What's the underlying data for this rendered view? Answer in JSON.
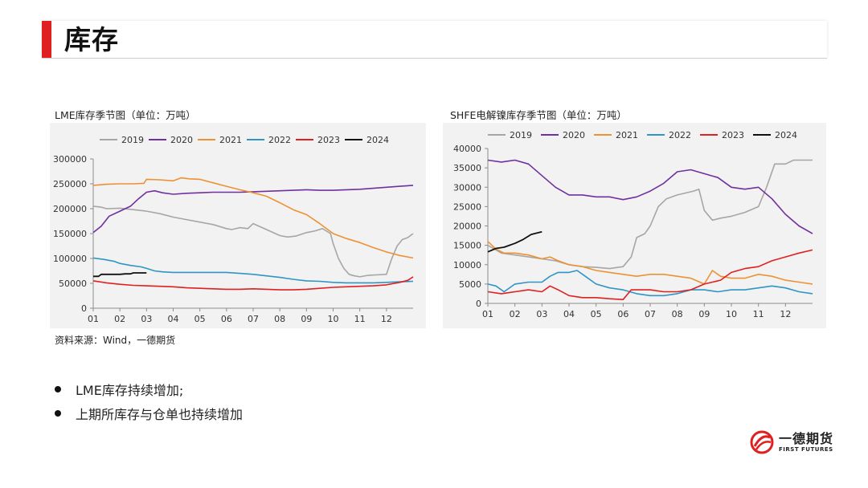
{
  "header": {
    "title": "库存"
  },
  "charts": {
    "lme": {
      "title": "LME库存季节图（单位：万吨）"
    },
    "shfe": {
      "title": "SHFE电解镍库存季节图（单位：万吨）"
    }
  },
  "source_note": "资料来源：Wind，一德期货",
  "bullets": [
    "LME库存持续增加;",
    "上期所库存与仓单也持续增加"
  ],
  "logo": {
    "cn": "一德期货",
    "en": "FIRST FUTURES"
  },
  "colors": {
    "2019": "#a6a6a6",
    "2020": "#7030a0",
    "2021": "#ed9234",
    "2022": "#2f95c5",
    "2023": "#e02020",
    "2024": "#111111",
    "accent": "#e02020"
  },
  "chart_data": [
    {
      "type": "line",
      "title": "LME库存季节图（单位：万吨）",
      "xlabel": "",
      "ylabel": "",
      "x_ticks": [
        "01",
        "02",
        "03",
        "04",
        "05",
        "06",
        "07",
        "08",
        "09",
        "10",
        "11",
        "12"
      ],
      "y_ticks": [
        "0",
        "50000",
        "100000",
        "150000",
        "200000",
        "250000",
        "300000"
      ],
      "ylim": [
        0,
        300000
      ],
      "xlim": [
        1,
        13
      ],
      "legend": "top",
      "grid": false,
      "series": [
        {
          "name": "2019",
          "color": "#a6a6a6",
          "x": [
            1,
            1.3,
            1.5,
            2,
            2.5,
            3,
            3.5,
            4,
            4.5,
            5,
            5.5,
            6,
            6.2,
            6.5,
            6.8,
            7,
            7.5,
            8,
            8.3,
            8.6,
            9,
            9.3,
            9.6,
            9.9,
            10,
            10.2,
            10.4,
            10.6,
            10.8,
            11,
            11.3,
            11.6,
            12,
            12.2,
            12.4,
            12.6,
            12.8,
            13
          ],
          "y": [
            205000,
            203000,
            200000,
            201000,
            198000,
            195000,
            190000,
            183000,
            178000,
            173000,
            168000,
            160000,
            158000,
            162000,
            160000,
            170000,
            158000,
            146000,
            143000,
            145000,
            152000,
            155000,
            160000,
            150000,
            130000,
            100000,
            80000,
            68000,
            65000,
            63000,
            66000,
            67000,
            68000,
            100000,
            125000,
            138000,
            142000,
            150000
          ]
        },
        {
          "name": "2020",
          "color": "#7030a0",
          "x": [
            1,
            1.3,
            1.6,
            2,
            2.4,
            2.7,
            3,
            3.3,
            3.6,
            4,
            4.5,
            5,
            5.5,
            6,
            6.5,
            7,
            7.5,
            8,
            8.5,
            9,
            9.5,
            10,
            10.5,
            11,
            11.5,
            12,
            12.5,
            13
          ],
          "y": [
            152000,
            165000,
            185000,
            195000,
            205000,
            220000,
            233000,
            236000,
            232000,
            229000,
            231000,
            232000,
            233000,
            233000,
            233000,
            234000,
            235000,
            236000,
            237000,
            238000,
            237000,
            237000,
            238000,
            239000,
            241000,
            243000,
            245000,
            247000
          ]
        },
        {
          "name": "2021",
          "color": "#ed9234",
          "x": [
            1,
            1.5,
            2,
            2.5,
            2.9,
            3,
            3.5,
            4,
            4.3,
            4.6,
            5,
            5.5,
            6,
            6.5,
            7,
            7.5,
            8,
            8.5,
            9,
            9.5,
            10,
            10.5,
            11,
            11.5,
            12,
            12.5,
            13
          ],
          "y": [
            247000,
            249000,
            250000,
            250000,
            251000,
            259000,
            258000,
            256000,
            262000,
            260000,
            259000,
            252000,
            245000,
            238000,
            232000,
            225000,
            212000,
            198000,
            188000,
            170000,
            150000,
            140000,
            132000,
            122000,
            113000,
            106000,
            101000
          ]
        },
        {
          "name": "2022",
          "color": "#2f95c5",
          "x": [
            1,
            1.4,
            1.8,
            2,
            2.4,
            2.8,
            3,
            3.3,
            3.6,
            4,
            4.5,
            5,
            5.5,
            6,
            6.5,
            7,
            7.5,
            8,
            8.5,
            9,
            9.5,
            10,
            10.5,
            11,
            11.5,
            12,
            12.5,
            13
          ],
          "y": [
            101000,
            98000,
            94000,
            90000,
            86000,
            83000,
            80000,
            75000,
            73000,
            72000,
            72000,
            72000,
            72000,
            72000,
            70000,
            68000,
            65000,
            62000,
            58000,
            55000,
            54000,
            52000,
            51000,
            51000,
            51000,
            52000,
            53000,
            54000
          ]
        },
        {
          "name": "2023",
          "color": "#e02020",
          "x": [
            1,
            1.5,
            2,
            2.5,
            3,
            3.5,
            4,
            4.5,
            5,
            5.5,
            6,
            6.5,
            7,
            7.5,
            8,
            8.5,
            9,
            9.5,
            10,
            10.5,
            11,
            11.5,
            12,
            12.5,
            12.8,
            13
          ],
          "y": [
            55000,
            51000,
            48000,
            46000,
            45000,
            44000,
            43000,
            41000,
            40000,
            39000,
            38000,
            38000,
            39000,
            38000,
            37000,
            37000,
            38000,
            40000,
            42000,
            43000,
            44000,
            45000,
            47000,
            52000,
            56000,
            63000
          ]
        },
        {
          "name": "2024",
          "color": "#111111",
          "x": [
            1,
            1.2,
            1.3,
            1.6,
            1.8,
            2,
            2.2,
            2.4,
            2.5,
            2.8,
            3
          ],
          "y": [
            64000,
            64000,
            68000,
            68000,
            68000,
            68000,
            69000,
            69000,
            71000,
            71000,
            71000
          ]
        }
      ]
    },
    {
      "type": "line",
      "title": "SHFE电解镍库存季节图（单位：万吨）",
      "xlabel": "",
      "ylabel": "",
      "x_ticks": [
        "01",
        "02",
        "03",
        "04",
        "05",
        "06",
        "07",
        "08",
        "09",
        "10",
        "11",
        "12"
      ],
      "y_ticks": [
        "0",
        "5000",
        "10000",
        "15000",
        "20000",
        "25000",
        "30000",
        "35000",
        "40000"
      ],
      "ylim": [
        0,
        40000
      ],
      "xlim": [
        1,
        13
      ],
      "legend": "top",
      "grid": false,
      "series": [
        {
          "name": "2019",
          "color": "#a6a6a6",
          "x": [
            1,
            1.5,
            2,
            2.5,
            3,
            3.5,
            4,
            4.5,
            5,
            5.5,
            6,
            6.3,
            6.5,
            6.8,
            7,
            7.3,
            7.6,
            8,
            8.3,
            8.6,
            8.8,
            9,
            9.3,
            9.6,
            10,
            10.5,
            11,
            11.3,
            11.6,
            12,
            12.3,
            12.6,
            13
          ],
          "y": [
            15000,
            13000,
            12500,
            12000,
            11500,
            11000,
            10000,
            9500,
            9300,
            9000,
            9500,
            12000,
            17000,
            18000,
            20000,
            25000,
            27000,
            28000,
            28500,
            29000,
            29500,
            24000,
            21500,
            22000,
            22500,
            23500,
            25000,
            30000,
            36000,
            36000,
            37000,
            37000,
            37000
          ]
        },
        {
          "name": "2020",
          "color": "#7030a0",
          "x": [
            1,
            1.5,
            2,
            2.5,
            3,
            3.5,
            4,
            4.5,
            5,
            5.5,
            6,
            6.5,
            7,
            7.5,
            8,
            8.5,
            9,
            9.5,
            10,
            10.5,
            11,
            11.5,
            12,
            12.5,
            13
          ],
          "y": [
            37000,
            36500,
            37000,
            36000,
            33000,
            30000,
            28000,
            28000,
            27500,
            27500,
            26800,
            27500,
            29000,
            31000,
            34000,
            34500,
            33500,
            32500,
            30000,
            29500,
            30000,
            27000,
            23000,
            20000,
            18000
          ]
        },
        {
          "name": "2021",
          "color": "#ed9234",
          "x": [
            1,
            1.3,
            1.6,
            2,
            2.5,
            3,
            3.3,
            3.6,
            4,
            4.5,
            5,
            5.5,
            6,
            6.5,
            7,
            7.5,
            8,
            8.5,
            9,
            9.3,
            9.6,
            10,
            10.5,
            11,
            11.5,
            12,
            12.5,
            13
          ],
          "y": [
            16000,
            14000,
            13000,
            13000,
            12500,
            11500,
            12000,
            11000,
            10000,
            9500,
            8500,
            8000,
            7500,
            7000,
            7500,
            7500,
            7000,
            6500,
            5000,
            8500,
            7000,
            6500,
            6500,
            7500,
            7000,
            6000,
            5500,
            5000
          ]
        },
        {
          "name": "2022",
          "color": "#2f95c5",
          "x": [
            1,
            1.3,
            1.6,
            2,
            2.5,
            3,
            3.3,
            3.6,
            4,
            4.3,
            4.6,
            5,
            5.5,
            6,
            6.5,
            7,
            7.5,
            8,
            8.5,
            9,
            9.5,
            10,
            10.5,
            11,
            11.5,
            12,
            12.5,
            13
          ],
          "y": [
            5000,
            4500,
            3000,
            5000,
            5500,
            5500,
            7000,
            8000,
            8000,
            8500,
            7000,
            5000,
            4000,
            3500,
            2500,
            2000,
            2000,
            2500,
            3500,
            3500,
            3000,
            3500,
            3500,
            4000,
            4500,
            4000,
            3000,
            2500
          ]
        },
        {
          "name": "2023",
          "color": "#e02020",
          "x": [
            1,
            1.5,
            2,
            2.5,
            3,
            3.3,
            3.6,
            4,
            4.5,
            5,
            5.5,
            6,
            6.3,
            6.6,
            7,
            7.5,
            8,
            8.5,
            9,
            9.3,
            9.6,
            10,
            10.5,
            11,
            11.5,
            12,
            12.5,
            13
          ],
          "y": [
            3000,
            2500,
            3000,
            3500,
            3000,
            4500,
            3500,
            2000,
            1500,
            1500,
            1200,
            1000,
            3500,
            3500,
            3500,
            3000,
            3000,
            3500,
            5000,
            5500,
            6000,
            8000,
            9000,
            9500,
            11000,
            12000,
            13000,
            13800
          ]
        },
        {
          "name": "2024",
          "color": "#111111",
          "x": [
            1,
            1.3,
            1.6,
            2,
            2.3,
            2.6,
            3
          ],
          "y": [
            13300,
            14200,
            14500,
            15500,
            16500,
            17800,
            18500
          ]
        }
      ]
    }
  ]
}
